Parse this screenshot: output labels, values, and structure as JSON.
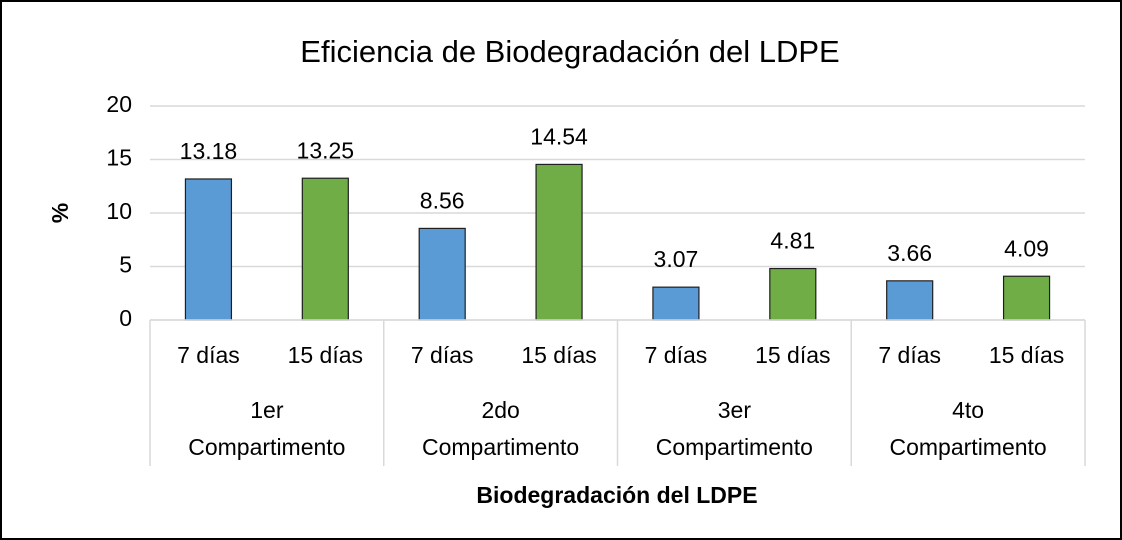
{
  "chart_data": {
    "type": "bar",
    "title": "Eficiencia de Biodegradación del LDPE",
    "x_label": "Biodegradación del LDPE",
    "y_label": "%",
    "categories": [
      "7 días",
      "15 días",
      "7 días",
      "15 días",
      "7 días",
      "15 días",
      "7 días",
      "15 días"
    ],
    "groups": [
      "1er Compartimento",
      "2do Compartimento",
      "3er Compartimento",
      "4to Compartimento"
    ],
    "values": [
      13.18,
      13.25,
      8.56,
      14.54,
      3.07,
      4.81,
      3.66,
      4.09
    ],
    "colors": [
      "#5b9bd5",
      "#70ad47",
      "#5b9bd5",
      "#70ad47",
      "#5b9bd5",
      "#70ad47",
      "#5b9bd5",
      "#70ad47"
    ],
    "ylim": [
      0,
      20
    ],
    "yticks": [
      0,
      5,
      10,
      15,
      20
    ],
    "grid": true
  }
}
